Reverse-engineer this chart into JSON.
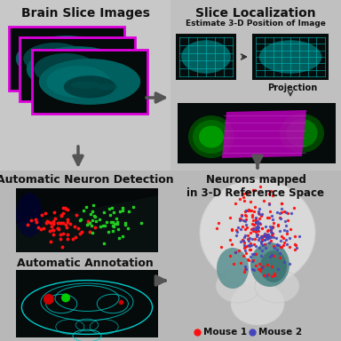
{
  "bg_color": "#c0c0c0",
  "quad_tl_color": "#c8c8c8",
  "quad_tr_color": "#b8b8b8",
  "quad_bl_color": "#b0b0b0",
  "quad_br_color": "#b8b8b8",
  "title_top_left": "Brain Slice Images",
  "title_top_right": "Slice Localization",
  "subtitle_top_right": "Estimate 3-D Position of Image",
  "proj_label": "Projection",
  "title_bot_left": "Automatic Neuron Detection",
  "subtitle_bot_left": "Automatic Annotation",
  "title_bot_right": "Neurons mapped\nin 3-D Reference Space",
  "legend_mouse1": "Mouse 1",
  "legend_mouse2": "Mouse 2",
  "legend_color1": "#ff1010",
  "legend_color2": "#4444bb",
  "text_color": "#111111",
  "arrow_color": "#555555",
  "dark_bg": "#060c0c",
  "magenta_color": "#cc00cc",
  "teal_brain": "#007a7a",
  "teal_bright": "#00cccc",
  "slice_bg": "#0a1010",
  "brain_slice_teal": "#006868",
  "brain_slice_dark": "#003838"
}
